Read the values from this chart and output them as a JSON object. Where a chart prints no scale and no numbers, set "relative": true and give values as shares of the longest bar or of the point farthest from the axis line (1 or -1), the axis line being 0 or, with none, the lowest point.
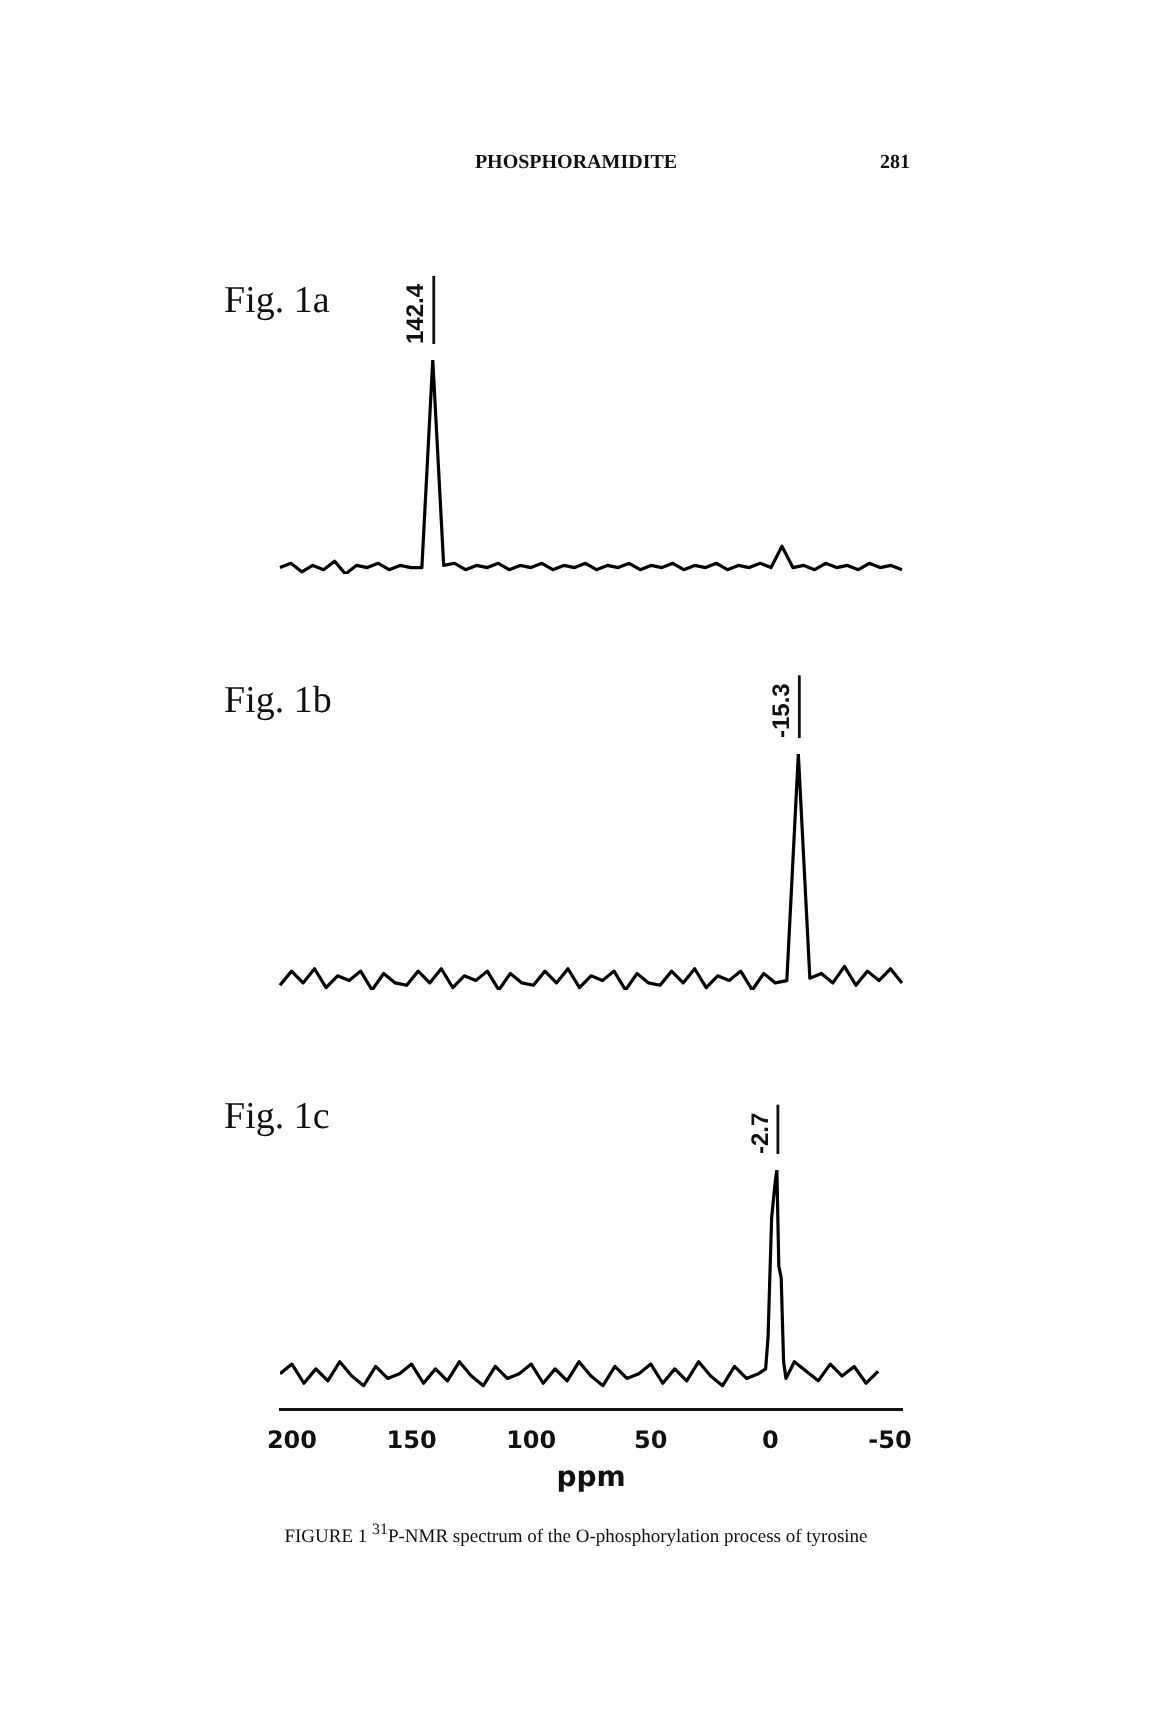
{
  "chart_data": [
    {
      "type": "line",
      "title": "Fig. 1a",
      "relative": true,
      "tick_labels": false,
      "marker": "none",
      "line_style": "solid",
      "annotations": [
        "142.4",
        "PHOSPHORAMIDITE",
        "281"
      ],
      "categories": [
        null,
        null,
        null,
        null,
        null,
        null,
        null,
        null,
        null,
        null,
        null,
        null,
        null,
        null,
        null,
        null,
        null,
        null,
        null,
        null,
        null,
        null,
        null,
        null,
        null,
        null,
        null,
        null,
        null,
        null,
        null,
        null,
        null,
        null,
        null,
        null,
        null,
        null,
        null,
        null,
        null,
        null,
        null,
        null,
        null,
        null,
        null,
        null,
        null,
        null,
        null,
        null,
        null,
        null,
        null,
        null,
        null,
        null
      ],
      "series": [
        {
          "color": "#000000",
          "values": [
            0.03,
            0.05,
            0.01,
            0.04,
            0.02,
            0.06,
            0.0,
            0.04,
            0.03,
            0.05,
            0.02,
            0.04,
            0.03,
            0.03,
            1,
            0.04,
            0.05,
            0.02,
            0.04,
            0.03,
            0.05,
            0.02,
            0.04,
            0.03,
            0.05,
            0.02,
            0.04,
            0.03,
            0.05,
            0.02,
            0.04,
            0.03,
            0.05,
            0.02,
            0.04,
            0.03,
            0.05,
            0.02,
            0.04,
            0.03,
            0.05,
            0.02,
            0.04,
            0.03,
            0.05,
            0.03,
            0.13,
            0.03,
            0.04,
            0.02,
            0.05,
            0.03,
            0.04,
            0.02,
            0.05,
            0.03,
            0.04,
            0.02
          ]
        }
      ]
    },
    {
      "type": "line",
      "title": "Fig. 1b",
      "relative": true,
      "tick_labels": false,
      "marker": "none",
      "line_style": "solid",
      "annotations": [
        "-15.3"
      ],
      "categories": [
        null,
        null,
        null,
        null,
        null,
        null,
        null,
        null,
        null,
        null,
        null,
        null,
        null,
        null,
        null,
        null,
        null,
        null,
        null,
        null,
        null,
        null,
        null,
        null,
        null,
        null,
        null,
        null,
        null,
        null,
        null,
        null,
        null,
        null,
        null,
        null,
        null,
        null,
        null,
        null,
        null,
        null,
        null,
        null,
        null,
        null,
        null,
        null,
        null,
        null,
        null,
        null,
        null,
        null,
        null
      ],
      "series": [
        {
          "color": "#000000",
          "values": [
            0.02,
            0.08,
            0.03,
            0.09,
            0.01,
            0.06,
            0.04,
            0.08,
            0.0,
            0.07,
            0.03,
            0.02,
            0.08,
            0.03,
            0.09,
            0.01,
            0.06,
            0.04,
            0.08,
            0.0,
            0.07,
            0.03,
            0.02,
            0.08,
            0.03,
            0.09,
            0.01,
            0.06,
            0.04,
            0.08,
            0.0,
            0.07,
            0.03,
            0.02,
            0.08,
            0.03,
            0.09,
            0.01,
            0.06,
            0.04,
            0.08,
            0.0,
            0.07,
            0.03,
            0.04,
            1,
            0.05,
            0.07,
            0.03,
            0.1,
            0.02,
            0.08,
            0.04,
            0.09,
            0.03
          ]
        }
      ]
    },
    {
      "type": "line",
      "title": "Fig. 1c",
      "relative": true,
      "tick_labels": "x",
      "xlabel": "ppm",
      "xlim": [
        205,
        -55
      ],
      "xticks": [
        200,
        150,
        100,
        50,
        0,
        {
          "value": -50,
          "label": "-50"
        }
      ],
      "marker": "none",
      "line_style": "solid",
      "annotations": [
        {
          "text": "-2.7",
          "x": -2.7,
          "y": 1
        },
        "FIGURE 1 $^{31}$P-NMR spectrum of the O-phosphorylation process of tyrosine"
      ],
      "x": [
        205,
        200,
        195,
        190,
        185,
        180,
        175,
        170,
        165,
        160,
        155,
        150,
        145,
        140,
        135,
        130,
        125,
        120,
        115,
        110,
        105,
        100,
        95,
        90,
        85,
        80,
        75,
        70,
        65,
        60,
        55,
        50,
        45,
        40,
        35,
        30,
        25,
        20,
        15,
        10,
        5,
        2,
        1,
        -0.5,
        -2,
        -2.7,
        -3.5,
        -4.5,
        -5.5,
        -6.5,
        -10,
        -15,
        -20,
        -25,
        -30,
        -35,
        -40,
        -45
      ],
      "series": [
        {
          "color": "#000000",
          "values": [
            0.15,
            0.19,
            0.11,
            0.17,
            0.12,
            0.2,
            0.14,
            0.1,
            0.18,
            0.13,
            0.15,
            0.19,
            0.11,
            0.17,
            0.12,
            0.2,
            0.14,
            0.1,
            0.18,
            0.13,
            0.15,
            0.19,
            0.11,
            0.17,
            0.12,
            0.2,
            0.14,
            0.1,
            0.18,
            0.13,
            0.15,
            0.19,
            0.11,
            0.17,
            0.12,
            0.2,
            0.14,
            0.1,
            0.18,
            0.13,
            0.15,
            0.17,
            0.3,
            0.8,
            0.95,
            1,
            0.6,
            0.55,
            0.2,
            0.13,
            0.2,
            0.16,
            0.12,
            0.19,
            0.14,
            0.18,
            0.11,
            0.16
          ]
        }
      ]
    }
  ]
}
